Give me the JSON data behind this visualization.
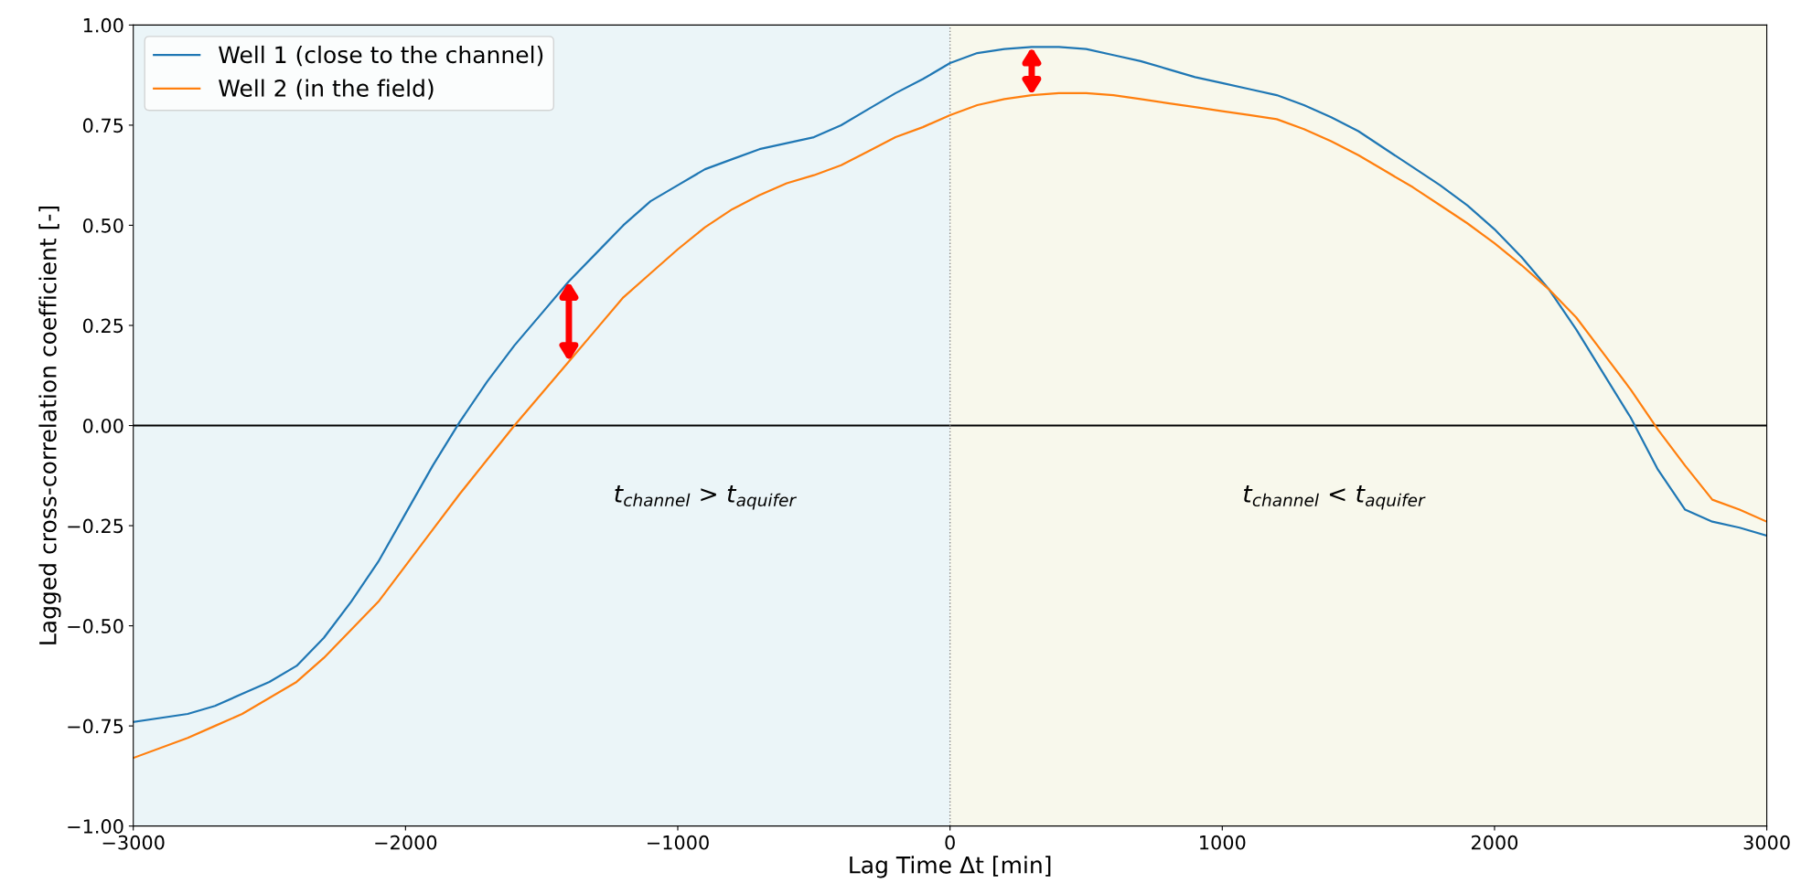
{
  "chart_data": {
    "type": "line",
    "xlabel": "Lag Time Δt [min]",
    "ylabel": "Lagged cross-correlation coefficient [-]",
    "xlim": [
      -3000,
      3000
    ],
    "ylim": [
      -1,
      1
    ],
    "xticks": [
      {
        "value": -3000,
        "label": "−3000"
      },
      {
        "value": -2000,
        "label": "−2000"
      },
      {
        "value": -1000,
        "label": "−1000"
      },
      0,
      1000,
      2000,
      3000
    ],
    "yticks": [
      {
        "value": -1,
        "label": "−1.00"
      },
      {
        "value": -0.75,
        "label": "−0.75"
      },
      {
        "value": -0.5,
        "label": "−0.50"
      },
      {
        "value": -0.25,
        "label": "−0.25"
      },
      {
        "value": 0,
        "label": "0.00"
      },
      {
        "value": 0.25,
        "label": "0.25"
      },
      {
        "value": 0.5,
        "label": "0.50"
      },
      {
        "value": 0.75,
        "label": "0.75"
      },
      {
        "value": 1,
        "label": "1.00"
      }
    ],
    "x": [
      -3000,
      -2800,
      -2700,
      -2600,
      -2500,
      -2400,
      -2300,
      -2200,
      -2100,
      -2000,
      -1900,
      -1800,
      -1700,
      -1600,
      -1500,
      -1400,
      -1300,
      -1200,
      -1100,
      -1000,
      -900,
      -800,
      -700,
      -600,
      -500,
      -400,
      -300,
      -200,
      -100,
      0,
      100,
      200,
      300,
      400,
      500,
      600,
      700,
      800,
      900,
      1000,
      1100,
      1200,
      1300,
      1400,
      1500,
      1600,
      1700,
      1800,
      1900,
      2000,
      2100,
      2200,
      2300,
      2400,
      2500,
      2600,
      2700,
      2800,
      2900,
      3000
    ],
    "series": [
      {
        "name": "Well 1 (close to the channel)",
        "color": "#1f77b4",
        "values": [
          -0.74,
          -0.72,
          -0.7,
          -0.67,
          -0.64,
          -0.6,
          -0.53,
          -0.44,
          -0.34,
          -0.22,
          -0.1,
          0.01,
          0.11,
          0.2,
          0.28,
          0.36,
          0.43,
          0.5,
          0.56,
          0.6,
          0.64,
          0.665,
          0.69,
          0.705,
          0.72,
          0.75,
          0.79,
          0.83,
          0.865,
          0.905,
          0.93,
          0.94,
          0.945,
          0.945,
          0.94,
          0.925,
          0.91,
          0.89,
          0.87,
          0.855,
          0.84,
          0.825,
          0.8,
          0.77,
          0.735,
          0.69,
          0.645,
          0.6,
          0.55,
          0.49,
          0.42,
          0.34,
          0.24,
          0.13,
          0.02,
          -0.11,
          -0.21,
          -0.24,
          -0.255,
          -0.275
        ]
      },
      {
        "name": "Well 2 (in the field)",
        "color": "#ff7f0e",
        "values": [
          -0.83,
          -0.78,
          -0.75,
          -0.72,
          -0.68,
          -0.64,
          -0.58,
          -0.51,
          -0.44,
          -0.35,
          -0.26,
          -0.17,
          -0.085,
          0.0,
          0.08,
          0.16,
          0.24,
          0.32,
          0.38,
          0.44,
          0.495,
          0.54,
          0.575,
          0.605,
          0.625,
          0.65,
          0.685,
          0.72,
          0.745,
          0.775,
          0.8,
          0.815,
          0.825,
          0.83,
          0.83,
          0.825,
          0.815,
          0.805,
          0.795,
          0.785,
          0.775,
          0.765,
          0.74,
          0.71,
          0.675,
          0.635,
          0.595,
          0.55,
          0.505,
          0.455,
          0.4,
          0.34,
          0.27,
          0.18,
          0.09,
          -0.01,
          -0.1,
          -0.185,
          -0.21,
          -0.24
        ]
      }
    ],
    "bands": [
      {
        "axis": "x",
        "from": -3000,
        "to": 0,
        "label": "t$_{channel}$ > t$_{aquifer}$",
        "color": "#ebf5f8"
      },
      {
        "axis": "x",
        "from": 0,
        "to": 3000,
        "label": "t$_{channel}$ < t$_{aquifer}$",
        "color": "#f8f8ec"
      }
    ],
    "ref_lines": [
      {
        "axis": "y",
        "value": 0,
        "color": "#000000",
        "line_style": "solid"
      },
      {
        "axis": "x",
        "value": 0,
        "color": "#888888",
        "line_style": "dotted"
      }
    ],
    "legend": "top left",
    "grid": false,
    "marker": "none",
    "line_style": "solid"
  }
}
